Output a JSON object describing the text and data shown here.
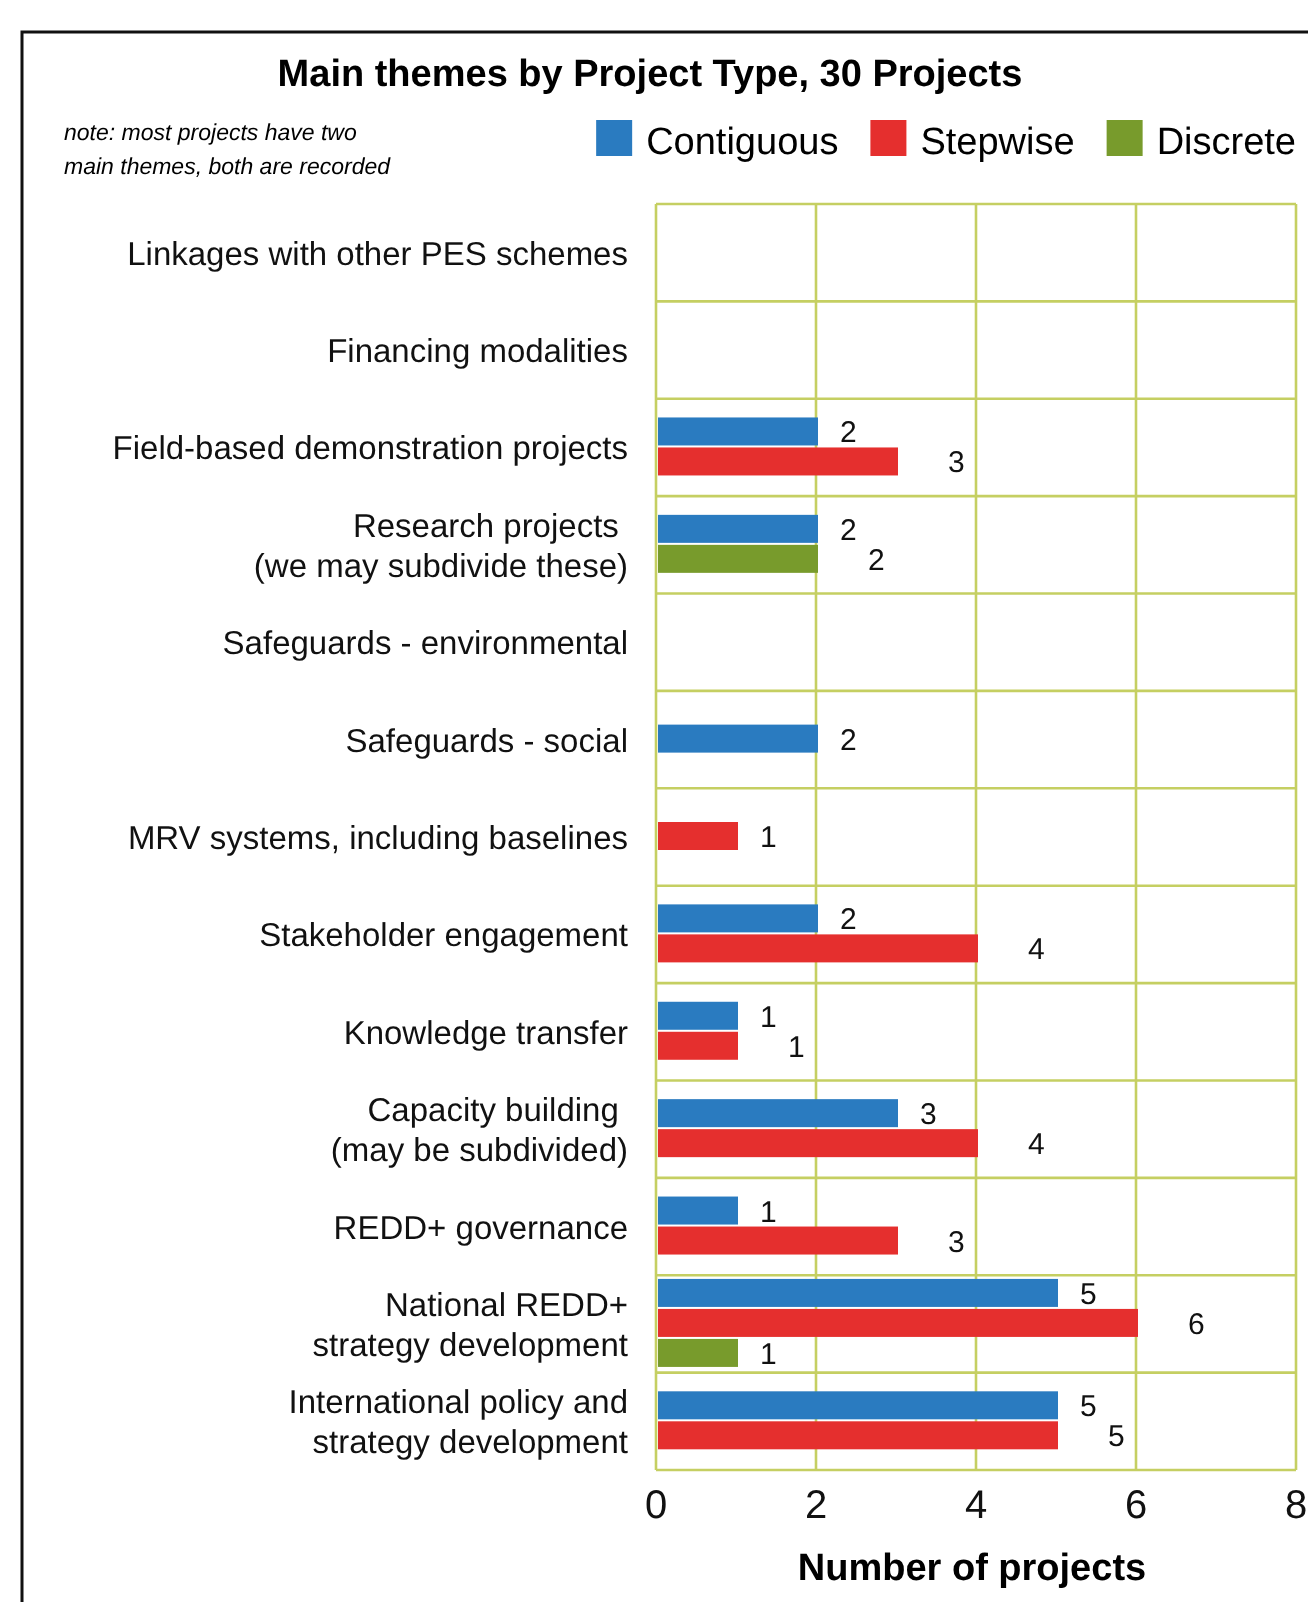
{
  "chart_data": {
    "type": "bar",
    "orientation": "horizontal",
    "title": "Main themes by Project Type, 30 Projects",
    "xlabel": "Number of projects",
    "annotations": [
      "note: most projects have two\nmain themes, both are recorded"
    ],
    "categories": [
      "Linkages with other PES schemes",
      "Financing modalities",
      "Field-based demonstration projects",
      "Research projects \n(we may subdivide these)",
      "Safeguards - environmental",
      "Safeguards - social",
      "MRV systems, including baselines",
      "Stakeholder engagement",
      "Knowledge transfer",
      "Capacity building \n(may be subdivided)",
      "REDD+ governance",
      "National REDD+\nstrategy development",
      "International policy and\nstrategy development"
    ],
    "series": [
      {
        "name": "Contiguous",
        "color": "#2a7bc0",
        "values": [
          null,
          null,
          2,
          2,
          null,
          2,
          null,
          2,
          1,
          3,
          1,
          5,
          5
        ]
      },
      {
        "name": "Stepwise",
        "color": "#e52f2e",
        "values": [
          null,
          null,
          3,
          null,
          null,
          null,
          1,
          4,
          1,
          4,
          3,
          6,
          5
        ]
      },
      {
        "name": "Discrete",
        "color": "#789b2c",
        "values": [
          null,
          null,
          null,
          2,
          null,
          null,
          null,
          null,
          null,
          null,
          null,
          1,
          null
        ]
      }
    ],
    "xlim": [
      0,
      8
    ],
    "xticks": [
      0,
      2,
      4,
      6,
      8
    ],
    "grid": true,
    "legend": "top right",
    "data_labels": true
  }
}
